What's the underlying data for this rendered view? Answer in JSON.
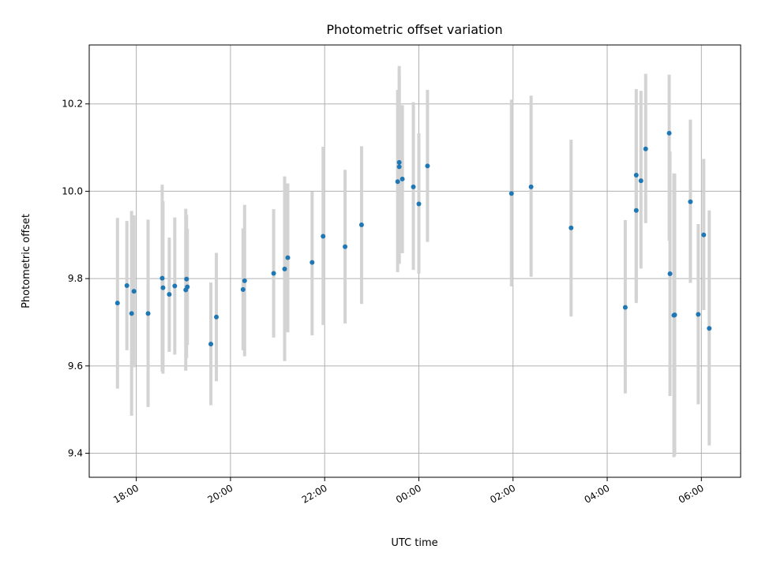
{
  "chart_data": {
    "type": "scatter",
    "title": "Photometric offset variation",
    "xlabel": "UTC time",
    "ylabel": "Photometric offset",
    "xlim": [
      "2023-01-01 17:00",
      "2023-01-02 06:50"
    ],
    "ylim": [
      9.345,
      10.335
    ],
    "x_ticks": [
      "18:00",
      "20:00",
      "22:00",
      "00:00",
      "02:00",
      "04:00",
      "06:00"
    ],
    "y_ticks": [
      "9.4",
      "9.6",
      "9.8",
      "10.0",
      "10.2"
    ],
    "grid": true,
    "colors": {
      "points": "#1f77b4",
      "errorbars": "#d3d3d3",
      "grid": "#b0b0b0"
    },
    "series": [
      {
        "x": [
          "2023-01-01 17:36",
          "2023-01-01 17:48",
          "2023-01-01 17:54",
          "2023-01-01 17:57",
          "2023-01-01 18:15",
          "2023-01-01 18:33",
          "2023-01-01 18:34",
          "2023-01-01 18:42",
          "2023-01-01 18:49",
          "2023-01-01 19:03",
          "2023-01-01 19:04",
          "2023-01-01 19:05",
          "2023-01-01 19:35",
          "2023-01-01 19:42",
          "2023-01-01 20:16",
          "2023-01-01 20:18",
          "2023-01-01 20:55",
          "2023-01-01 21:09",
          "2023-01-01 21:13",
          "2023-01-01 21:44",
          "2023-01-01 21:58",
          "2023-01-01 22:26",
          "2023-01-01 22:47",
          "2023-01-01 23:33",
          "2023-01-01 23:35",
          "2023-01-01 23:35",
          "2023-01-01 23:39",
          "2023-01-01 23:53",
          "2023-01-02 00:00",
          "2023-01-02 00:11",
          "2023-01-02 01:58",
          "2023-01-02 02:23",
          "2023-01-02 03:14",
          "2023-01-02 04:23",
          "2023-01-02 04:37",
          "2023-01-02 04:37",
          "2023-01-02 04:43",
          "2023-01-02 04:49",
          "2023-01-02 05:19",
          "2023-01-02 05:20",
          "2023-01-02 05:25",
          "2023-01-02 05:26",
          "2023-01-02 05:46",
          "2023-01-02 05:56",
          "2023-01-02 06:03",
          "2023-01-02 06:10"
        ],
        "y": [
          9.744,
          9.784,
          9.72,
          9.771,
          9.72,
          9.801,
          9.779,
          9.764,
          9.783,
          9.774,
          9.799,
          9.781,
          9.65,
          9.712,
          9.775,
          9.795,
          9.812,
          9.822,
          9.848,
          9.837,
          9.897,
          9.873,
          9.923,
          10.022,
          10.066,
          10.056,
          10.028,
          10.01,
          9.971,
          10.058,
          9.995,
          10.01,
          9.916,
          9.734,
          9.956,
          10.037,
          10.024,
          10.097,
          10.133,
          9.811,
          9.716,
          9.717,
          9.976,
          9.718,
          9.9,
          9.686
        ],
        "yerr_low": [
          9.548,
          9.636,
          9.486,
          9.597,
          9.506,
          9.587,
          9.582,
          9.632,
          9.626,
          9.589,
          9.618,
          9.648,
          9.51,
          9.565,
          9.636,
          9.622,
          9.665,
          9.611,
          9.677,
          9.67,
          9.694,
          9.697,
          9.742,
          9.815,
          9.834,
          9.836,
          9.858,
          9.82,
          9.811,
          9.884,
          9.782,
          9.804,
          9.713,
          9.537,
          9.751,
          9.744,
          9.823,
          9.927,
          9.887,
          9.531,
          9.391,
          9.395,
          9.79,
          9.512,
          9.728,
          9.418
        ],
        "yerr_high": [
          9.939,
          9.932,
          9.955,
          9.945,
          9.935,
          10.015,
          9.977,
          9.894,
          9.94,
          9.96,
          9.946,
          9.914,
          9.791,
          9.859,
          9.915,
          9.969,
          9.959,
          10.034,
          10.018,
          9.999,
          10.102,
          10.049,
          10.103,
          10.232,
          10.271,
          10.287,
          10.197,
          10.204,
          10.133,
          10.232,
          10.21,
          10.219,
          10.118,
          9.934,
          10.165,
          10.234,
          10.23,
          10.269,
          10.267,
          10.091,
          10.041,
          10.04,
          10.164,
          9.925,
          10.074,
          9.956
        ]
      }
    ]
  }
}
